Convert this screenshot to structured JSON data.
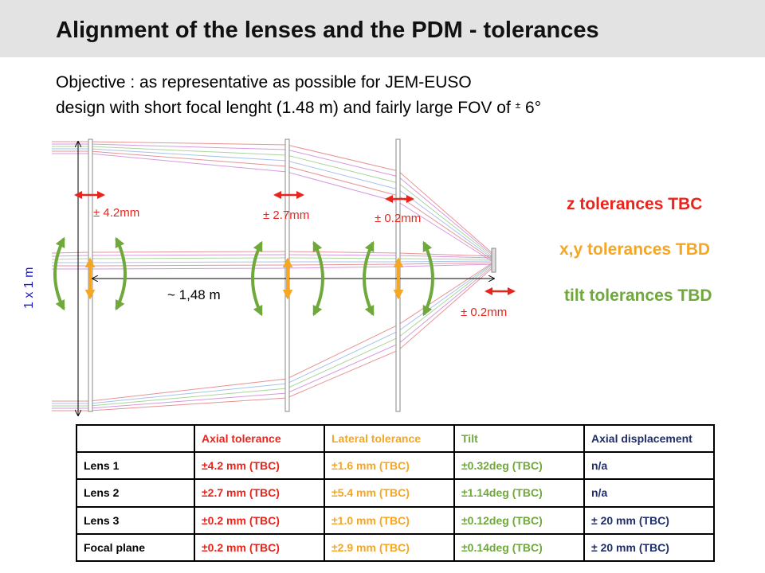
{
  "title": "Alignment of the lenses and the PDM - tolerances",
  "objective": {
    "line1": "Objective :  as representative as possible for JEM-EUSO",
    "line2_pre": "design with short focal lenght  (1.48 m) and  fairly large FOV of",
    "pm": "±",
    "line2_post": " 6°"
  },
  "diagram": {
    "size_label": "1 x 1 m",
    "focal_label": "~ 1,48 m",
    "z_tol": [
      "± 4.2mm",
      "± 2.7mm",
      "± 0.2mm",
      "± 0.2mm"
    ],
    "legend": {
      "z": "z tolerances TBC",
      "xy": "x,y tolerances TBD",
      "tilt": "tilt tolerances TBD"
    },
    "colors": {
      "z": "#e8251d",
      "xy": "#f5a623",
      "tilt": "#6fa83b",
      "size": "#1a1ad6"
    }
  },
  "table": {
    "headers": [
      "",
      "Axial tolerance",
      "Lateral tolerance",
      "Tilt",
      "Axial displacement"
    ],
    "rows": [
      {
        "name": "Lens 1",
        "axial": "±4.2 mm (TBC)",
        "lateral": "±1.6 mm (TBC)",
        "tilt": "±0.32deg (TBC)",
        "disp": "n/a"
      },
      {
        "name": "Lens 2",
        "axial": "±2.7 mm (TBC)",
        "lateral": "±5.4 mm (TBC)",
        "tilt": "±1.14deg (TBC)",
        "disp": "n/a"
      },
      {
        "name": "Lens 3",
        "axial": "±0.2 mm (TBC)",
        "lateral": "±1.0 mm (TBC)",
        "tilt": "±0.12deg (TBC)",
        "disp": "± 20 mm (TBC)"
      },
      {
        "name": "Focal plane",
        "axial": "±0.2 mm (TBC)",
        "lateral": "±2.9 mm (TBC)",
        "tilt": "±0.14deg (TBC)",
        "disp": "± 20 mm (TBC)"
      }
    ]
  }
}
